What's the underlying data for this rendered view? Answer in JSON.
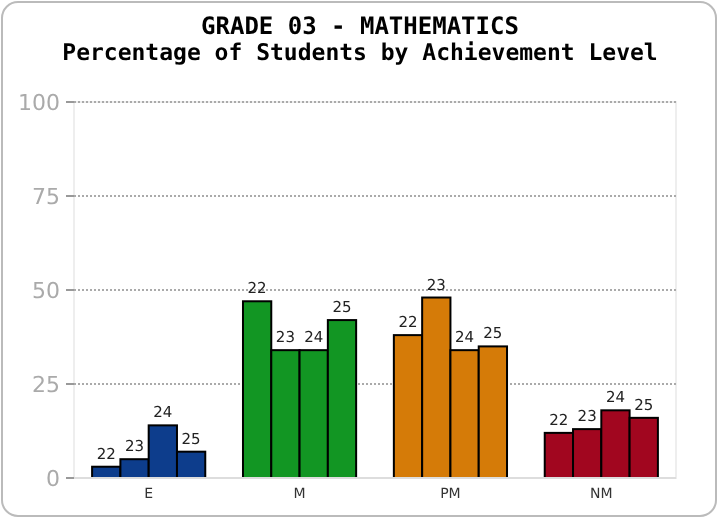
{
  "chart_data": {
    "type": "bar",
    "title": "GRADE 03 - MATHEMATICS",
    "subtitle": "Percentage of Students by Achievement Level",
    "categories": [
      "E",
      "M",
      "PM",
      "NM"
    ],
    "ylim": [
      0,
      100
    ],
    "yticks": [
      0,
      25,
      50,
      75,
      100
    ],
    "grid": "y",
    "series": [
      {
        "name": "22",
        "colors": [
          "#0d3d8c",
          "#129623",
          "#d57b08",
          "#a1061f"
        ],
        "values": [
          3,
          47,
          38,
          12
        ]
      },
      {
        "name": "23",
        "colors": [
          "#0d3d8c",
          "#129623",
          "#d57b08",
          "#a1061f"
        ],
        "values": [
          5,
          34,
          48,
          13
        ]
      },
      {
        "name": "24",
        "colors": [
          "#0d3d8c",
          "#129623",
          "#d57b08",
          "#a1061f"
        ],
        "values": [
          14,
          34,
          34,
          18
        ]
      },
      {
        "name": "25",
        "colors": [
          "#0d3d8c",
          "#129623",
          "#d57b08",
          "#a1061f"
        ],
        "values": [
          7,
          42,
          35,
          16
        ]
      }
    ]
  }
}
